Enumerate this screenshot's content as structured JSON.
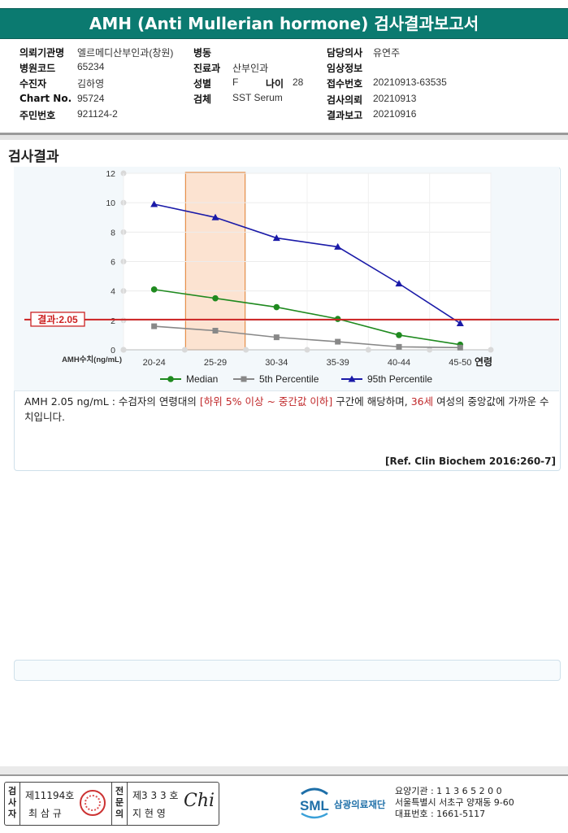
{
  "header": {
    "title": "AMH (Anti Mullerian hormone) 검사결과보고서"
  },
  "info": {
    "hospital_label": "의뢰기관명",
    "hospital_value": "엘르메디산부인과(창원)",
    "hospcode_label": "병원코드",
    "hospcode_value": "65234",
    "patient_label": "수진자",
    "patient_value": "김하영",
    "chart_label": "Chart No.",
    "chart_value": "95724",
    "id_label": "주민번호",
    "id_value": "921124-2",
    "ward_label": "병동",
    "ward_value": "",
    "dept_label": "진료과",
    "dept_value": "산부인과",
    "sex_label": "성별",
    "sex_value": "F",
    "age_label": "나이",
    "age_value": "28",
    "specimen_label": "검체",
    "specimen_value": "SST Serum",
    "doctor_label": "담당의사",
    "doctor_value": "유연주",
    "clinical_label": "임상정보",
    "clinical_value": "",
    "receipt_label": "접수번호",
    "receipt_value": "20210913-63535",
    "request_label": "검사의뢰",
    "request_value": "20210913",
    "report_label": "결과보고",
    "report_value": "20210916"
  },
  "section_title": "검사결과",
  "chart_data": {
    "type": "line",
    "categories": [
      "20-24",
      "25-29",
      "30-34",
      "35-39",
      "40-44",
      "45-50"
    ],
    "xlabel": "연령",
    "ylabel": "AMH수치(ng/mL)",
    "ylim": [
      0,
      12
    ],
    "yticks": [
      0,
      2,
      4,
      6,
      8,
      10,
      12
    ],
    "highlight_category": "25-29",
    "result_line": {
      "value": 2.05,
      "label": "결과:2.05",
      "color": "#cc2222"
    },
    "series": [
      {
        "name": "Median",
        "values": [
          4.1,
          3.5,
          2.9,
          2.1,
          1.0,
          0.35
        ],
        "color": "#1f8a1f",
        "marker": "circle"
      },
      {
        "name": "5th Percentile",
        "values": [
          1.6,
          1.3,
          0.85,
          0.55,
          0.2,
          0.15
        ],
        "color": "#888888",
        "marker": "square"
      },
      {
        "name": "95th Percentile",
        "values": [
          9.9,
          9.0,
          7.6,
          7.0,
          4.5,
          1.8
        ],
        "color": "#1a1aa8",
        "marker": "triangle"
      }
    ]
  },
  "comment": {
    "part1": "AMH  2.05 ng/mL : 수검자의 연령대의 ",
    "range": "[하위 5% 이상 ~ 중간값 이하]",
    "part2": "  구간에 해당하며, ",
    "age": "36세",
    "part3": " 여성의 중앙값에 가까운 수치입니다."
  },
  "reference": "[Ref. Clin Biochem 2016:260-7]",
  "footer": {
    "examiner_vertical": [
      "검",
      "사",
      "자"
    ],
    "examiner_license": "제11194호",
    "examiner_name": "최 삼 규",
    "specialist_vertical": [
      "전",
      "문",
      "의"
    ],
    "specialist_license": "제3 3 3 호",
    "specialist_name": "지 현 영",
    "signature": "Chi",
    "logo_text": "SML",
    "org_name": "삼광의료재단",
    "org_code": "요양기관 : 1 1 3 6 5 2 0 0",
    "address": "서울특별시 서초구 양재동 9-60",
    "phone": "대표번호 : 1661-5117"
  }
}
